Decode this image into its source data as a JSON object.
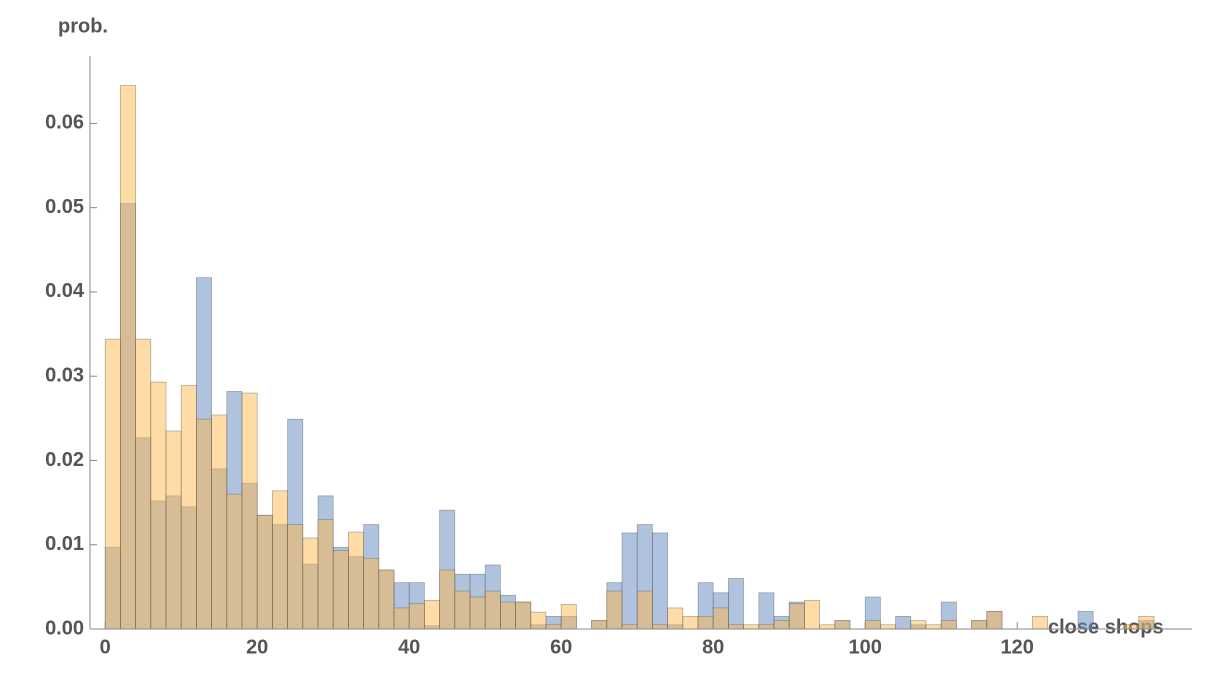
{
  "chart_data": {
    "type": "histogram",
    "y_label": "prob.",
    "x_label": "close shops",
    "bins": [
      0,
      2,
      4,
      6,
      8,
      10,
      12,
      14,
      16,
      18,
      20,
      22,
      24,
      26,
      28,
      30,
      32,
      34,
      36,
      38,
      40,
      42,
      44,
      46,
      48,
      50,
      52,
      54,
      56,
      58,
      60,
      62,
      64,
      66,
      68,
      70,
      72,
      74,
      76,
      78,
      80,
      82,
      84,
      86,
      88,
      90,
      92,
      94,
      96,
      98,
      100,
      102,
      104,
      106,
      108,
      110,
      112,
      114,
      116,
      118,
      120,
      122,
      124,
      126,
      128,
      130,
      132,
      134,
      136,
      138
    ],
    "series": [
      {
        "color": "#5f87c0",
        "values": [
          0.0097,
          0.0505,
          0.0227,
          0.0152,
          0.0158,
          0.0145,
          0.0417,
          0.019,
          0.0282,
          0.0173,
          0.0135,
          0.0124,
          0.0249,
          0.0077,
          0.0158,
          0.0097,
          0.0086,
          0.0124,
          0.007,
          0.0055,
          0.0055,
          0.0004,
          0.0141,
          0.0065,
          0.0065,
          0.0076,
          0.004,
          0.0032,
          0.0005,
          0.0015,
          0.0015,
          0,
          0.001,
          0.0055,
          0.0114,
          0.0124,
          0.0114,
          0.0005,
          0,
          0.0055,
          0.0043,
          0.006,
          0,
          0.0043,
          0.0015,
          0.0032,
          0,
          0,
          0.001,
          0,
          0.0038,
          0,
          0.0015,
          0.0005,
          0,
          0.0032,
          0,
          0.001,
          0.0021,
          0,
          0,
          0,
          0,
          0,
          0.0021,
          0,
          0,
          0,
          0.001
        ]
      },
      {
        "color": "#ffb84d",
        "values": [
          0.0344,
          0.0645,
          0.0344,
          0.0293,
          0.0235,
          0.0289,
          0.0249,
          0.0254,
          0.016,
          0.028,
          0.0135,
          0.0164,
          0.0124,
          0.0108,
          0.013,
          0.0093,
          0.0115,
          0.0084,
          0.007,
          0.0025,
          0.003,
          0.0034,
          0.007,
          0.0045,
          0.0038,
          0.0045,
          0.0032,
          0.0032,
          0.002,
          0.0005,
          0.0029,
          0,
          0.001,
          0.0045,
          0.0005,
          0.0045,
          0.0005,
          0.0025,
          0.0015,
          0.0015,
          0.0025,
          0.0005,
          0.0005,
          0.0005,
          0.001,
          0.003,
          0.0034,
          0.0005,
          0.001,
          0,
          0.001,
          0.0005,
          0,
          0.001,
          0.0005,
          0.001,
          0,
          0.001,
          0.0021,
          0,
          0,
          0.0015,
          0,
          0,
          0,
          0,
          0,
          0.0005,
          0.0015
        ]
      }
    ],
    "xlim": [
      -2,
      143
    ],
    "ylim": [
      0,
      0.068
    ],
    "xticks": [
      0,
      20,
      40,
      60,
      80,
      100,
      120
    ],
    "yticks": [
      {
        "value": 0,
        "label": "0.00"
      },
      {
        "value": 0.01,
        "label": "0.01"
      },
      {
        "value": 0.02,
        "label": "0.02"
      },
      {
        "value": 0.03,
        "label": "0.03"
      },
      {
        "value": 0.04,
        "label": "0.04"
      },
      {
        "value": 0.05,
        "label": "0.05"
      },
      {
        "value": 0.06,
        "label": "0.06"
      }
    ]
  }
}
